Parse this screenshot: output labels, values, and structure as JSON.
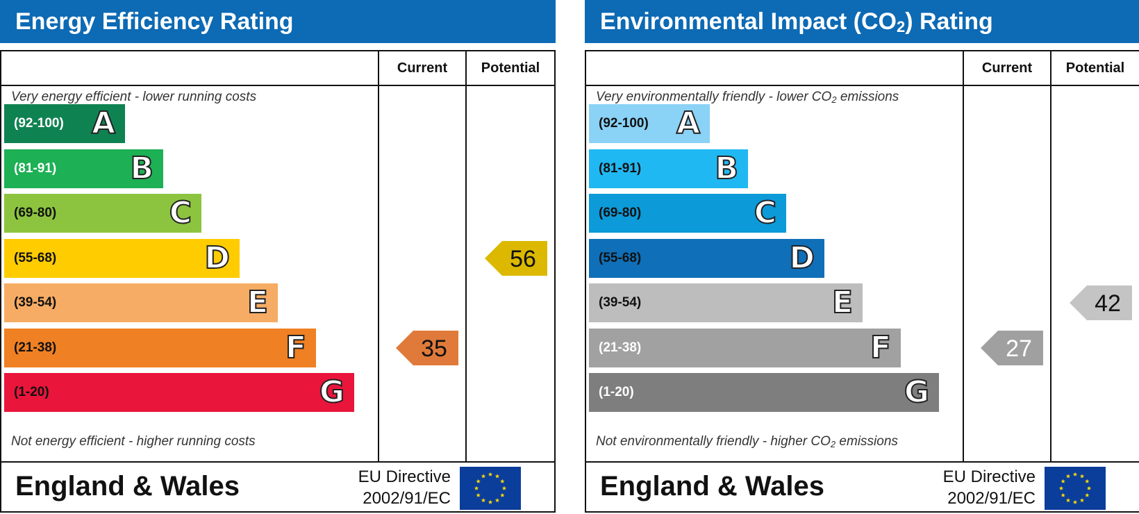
{
  "chart_data": [
    {
      "type": "rating",
      "title": "Energy Efficiency Rating",
      "columns": [
        "Current",
        "Potential"
      ],
      "top_caption": "Very energy efficient - lower running costs",
      "bottom_caption": "Not energy efficient - higher running costs",
      "bands": [
        {
          "letter": "A",
          "range": "(92-100)",
          "color": "#0f8251",
          "text_color": "#ffffff"
        },
        {
          "letter": "B",
          "range": "(81-91)",
          "color": "#1db054",
          "text_color": "#ffffff"
        },
        {
          "letter": "C",
          "range": "(69-80)",
          "color": "#8cc43f",
          "text_color": "#111111"
        },
        {
          "letter": "D",
          "range": "(55-68)",
          "color": "#ffcc00",
          "text_color": "#111111"
        },
        {
          "letter": "E",
          "range": "(39-54)",
          "color": "#f6ac64",
          "text_color": "#111111"
        },
        {
          "letter": "F",
          "range": "(21-38)",
          "color": "#ef8023",
          "text_color": "#111111"
        },
        {
          "letter": "G",
          "range": "(1-20)",
          "color": "#e9153b",
          "text_color": "#111111"
        }
      ],
      "current": {
        "value": 35,
        "band": "F",
        "color": "#e07a3a",
        "text_color": "#111111"
      },
      "potential": {
        "value": 56,
        "band": "D",
        "color": "#dcb900",
        "text_color": "#111111"
      },
      "footer": {
        "region": "England & Wales",
        "directive_line1": "EU Directive",
        "directive_line2": "2002/91/EC"
      }
    },
    {
      "type": "rating",
      "title_parts": [
        "Environmental Impact (CO",
        "2",
        ") Rating"
      ],
      "columns": [
        "Current",
        "Potential"
      ],
      "top_caption_parts": [
        "Very environmentally friendly - lower CO",
        "2",
        " emissions"
      ],
      "bottom_caption_parts": [
        "Not environmentally friendly - higher CO",
        "2",
        " emissions"
      ],
      "bands": [
        {
          "letter": "A",
          "range": "(92-100)",
          "color": "#8ad2f6",
          "text_color": "#111111"
        },
        {
          "letter": "B",
          "range": "(81-91)",
          "color": "#20b8f2",
          "text_color": "#111111"
        },
        {
          "letter": "C",
          "range": "(69-80)",
          "color": "#0c9ad8",
          "text_color": "#111111"
        },
        {
          "letter": "D",
          "range": "(55-68)",
          "color": "#0f6fb8",
          "text_color": "#111111"
        },
        {
          "letter": "E",
          "range": "(39-54)",
          "color": "#bdbdbd",
          "text_color": "#111111"
        },
        {
          "letter": "F",
          "range": "(21-38)",
          "color": "#a1a1a1",
          "text_color": "#ffffff"
        },
        {
          "letter": "G",
          "range": "(1-20)",
          "color": "#7e7e7e",
          "text_color": "#ffffff"
        }
      ],
      "current": {
        "value": 27,
        "band": "F",
        "color": "#a0a0a0",
        "text_color": "#ffffff"
      },
      "potential": {
        "value": 42,
        "band": "E",
        "color": "#c4c4c4",
        "text_color": "#111111"
      },
      "footer": {
        "region": "England & Wales",
        "directive_line1": "EU Directive",
        "directive_line2": "2002/91/EC"
      }
    }
  ]
}
